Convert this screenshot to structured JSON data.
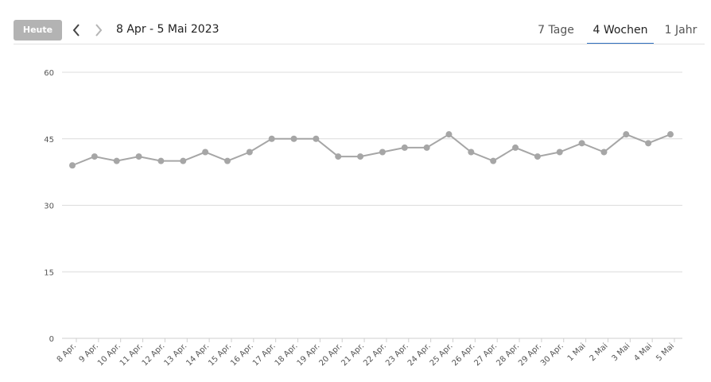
{
  "toolbar": {
    "today_label": "Heute",
    "prev_icon": "chevron-left-icon",
    "next_icon": "chevron-right-icon",
    "range_label": "8 Apr - 5 Mai 2023",
    "tabs": [
      {
        "label": "7 Tage",
        "active": false
      },
      {
        "label": "4 Wochen",
        "active": true
      },
      {
        "label": "1 Jahr",
        "active": false
      }
    ],
    "accent_color": "#2e6fbf"
  },
  "chart_data": {
    "type": "line",
    "categories": [
      "8 Apr.",
      "9 Apr.",
      "10 Apr.",
      "11 Apr.",
      "12 Apr.",
      "13 Apr.",
      "14 Apr.",
      "15 Apr.",
      "16 Apr.",
      "17 Apr.",
      "18 Apr.",
      "19 Apr.",
      "20 Apr.",
      "21 Apr.",
      "22 Apr.",
      "23 Apr.",
      "24 Apr.",
      "25 Apr.",
      "26 Apr.",
      "27 Apr.",
      "28 Apr.",
      "29 Apr.",
      "30 Apr.",
      "1 Mai",
      "2 Mai",
      "3 Mai",
      "4 Mai",
      "5 Mai"
    ],
    "series": [
      {
        "values": [
          39,
          41,
          40,
          41,
          40,
          40,
          42,
          40,
          42,
          45,
          45,
          45,
          41,
          41,
          42,
          43,
          43,
          46,
          42,
          40,
          43,
          41,
          42,
          44,
          42,
          46,
          44,
          46
        ],
        "color": "#a6a6a6"
      }
    ],
    "ylim": [
      0,
      60
    ],
    "yticks": [
      0,
      15,
      30,
      45,
      60
    ],
    "grid": true,
    "legend": "none"
  }
}
